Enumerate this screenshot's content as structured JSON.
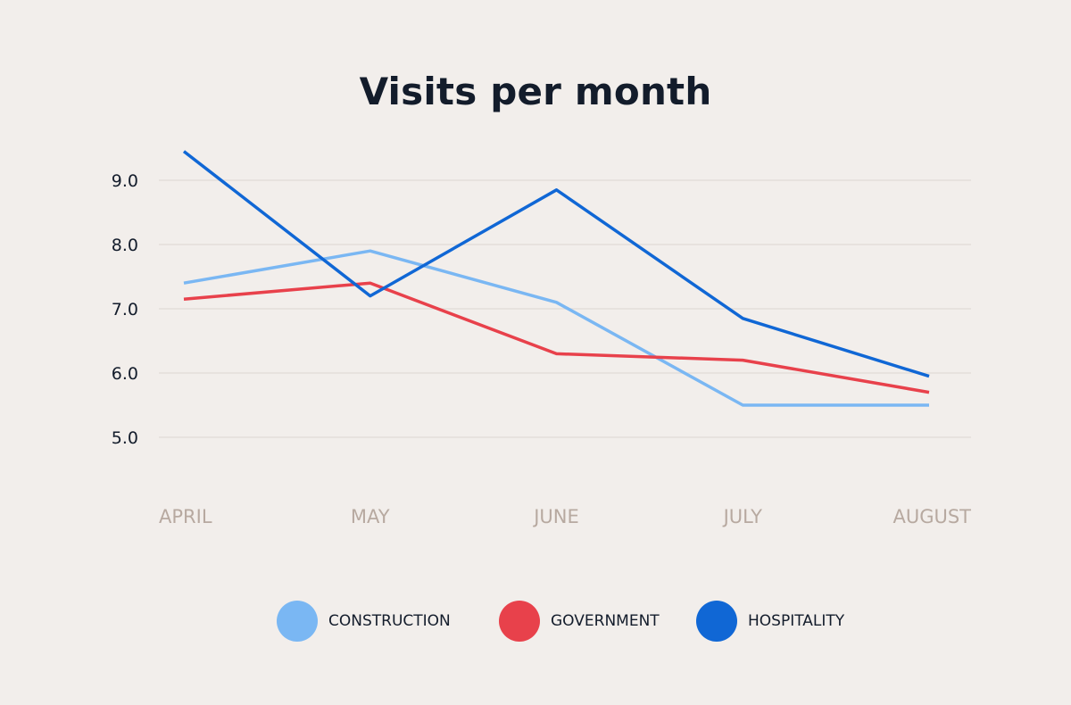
{
  "chart_data": {
    "type": "line",
    "title": "Visits per month",
    "xlabel": "",
    "ylabel": "",
    "categories": [
      "APRIL",
      "MAY",
      "JUNE",
      "JULY",
      "AUGUST"
    ],
    "y_ticks": [
      "5.0",
      "6.0",
      "7.0",
      "8.0",
      "9.0"
    ],
    "ylim": [
      4.4,
      9.6
    ],
    "grid": "horizontal",
    "legend_position": "bottom",
    "series": [
      {
        "name": "CONSTRUCTION",
        "color": "#7ab7f3",
        "values": [
          7.4,
          7.9,
          7.1,
          5.5,
          5.5
        ]
      },
      {
        "name": "GOVERNMENT",
        "color": "#e8414b",
        "values": [
          7.15,
          7.4,
          6.3,
          6.2,
          5.7
        ]
      },
      {
        "name": "HOSPITALITY",
        "color": "#1067d5",
        "values": [
          9.45,
          7.2,
          8.85,
          6.85,
          5.95
        ]
      }
    ]
  },
  "colors": {
    "background": "#f2eeeb",
    "gridline": "#e3ddd9",
    "title": "#131c2b",
    "x_tick": "#b7a9a0"
  }
}
